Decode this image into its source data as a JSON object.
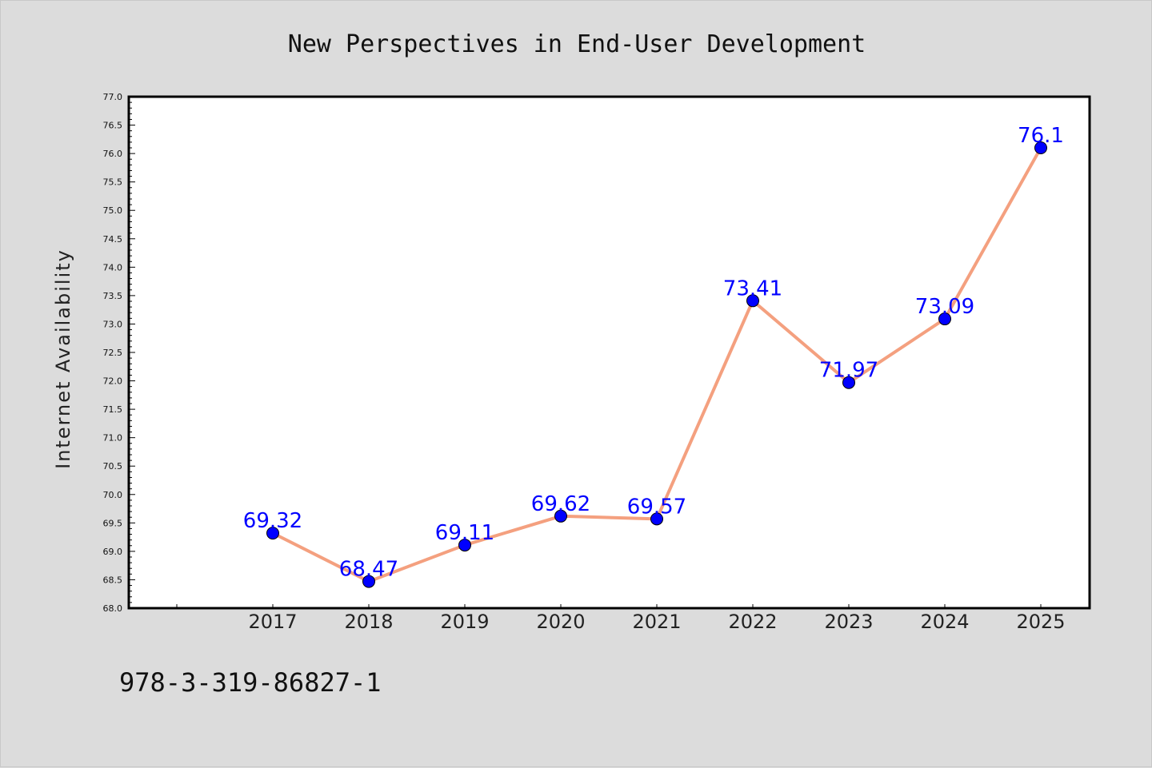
{
  "chart_data": {
    "type": "line",
    "title": "New Perspectives in End-User Development",
    "xlabel": "",
    "ylabel": "Internet Availability",
    "categories": [
      "2017",
      "2018",
      "2019",
      "2020",
      "2021",
      "2022",
      "2023",
      "2024",
      "2025"
    ],
    "series": [
      {
        "values": [
          69.32,
          68.47,
          69.11,
          69.62,
          69.57,
          73.41,
          71.97,
          73.09,
          76.1
        ],
        "data_labels": [
          "69.32",
          "68.47",
          "69.11",
          "69.62",
          "69.57",
          "73.41",
          "71.97",
          "73.09",
          "76.1"
        ],
        "line_color": "#f4a07f",
        "marker_color": "#0000ff"
      }
    ],
    "ylim": [
      68.0,
      77.0
    ],
    "y_ticks": [
      "68.0",
      "68.5",
      "69.0",
      "69.5",
      "70.0",
      "70.5",
      "71.0",
      "71.5",
      "72.0",
      "72.5",
      "73.0",
      "73.5",
      "74.0",
      "74.5",
      "75.0",
      "75.5",
      "76.0",
      "76.5",
      "77.0"
    ],
    "grid": false,
    "legend": "none"
  },
  "footnote": "978-3-319-86827-1",
  "colors": {
    "background": "#dcdcdc",
    "plot_background": "#ffffff",
    "line": "#f4a07f",
    "marker": "#0000ff",
    "data_label": "#0000ff"
  }
}
